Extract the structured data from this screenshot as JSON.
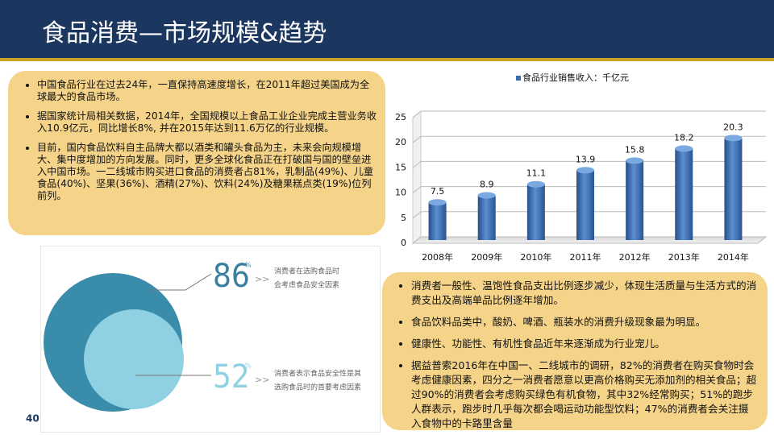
{
  "header": {
    "title": "食品消费—市场规模&趋势"
  },
  "left_box": {
    "bullets": [
      "中国食品行业在过去24年，一直保持高速度增长，在2011年超过美国成为全球最大的食品市场。",
      "据国家统计局相关数据，2014年，全国规模以上食品工业企业完成主营业务收入10.9亿元，同比增长8%, 并在2015年达到11.6万亿的行业规模。",
      "目前，国内食品饮料自主品牌大都以酒类和罐头食品为主，未来会向规模增大、集中度增加的方向发展。同时，更多全球化食品正在打破国与国的壁垒进入中国市场。一二线城市购买进口食品的消费者占81%，乳制品(49%)、儿童食品(40%)、坚果(36%)、酒精(27%)、饮料(24%)及糖果糕点类(19%)位列前列。"
    ]
  },
  "chart_data": {
    "type": "bar",
    "categories": [
      "2008年",
      "2009年",
      "2010年",
      "2011年",
      "2012年",
      "2013年",
      "2014年"
    ],
    "series": [
      {
        "name": "食品行业销售收入：千亿元",
        "color": "#3a6db0",
        "values": [
          7.5,
          8.9,
          11.1,
          13.9,
          15.8,
          18.2,
          20.3
        ]
      }
    ],
    "ylim": [
      0,
      25
    ],
    "yticks": [
      0,
      5,
      10,
      15,
      20,
      25
    ],
    "grid": true,
    "legend": "top"
  },
  "infographic": {
    "stats": [
      {
        "number": "86",
        "unit": "%",
        "arrow": ">>",
        "text": [
          "消费者在选购食品时",
          "会考虑食品安全因素"
        ]
      },
      {
        "number": "52",
        "unit": "%",
        "arrow": ">>",
        "text": [
          "消费者表示食品安全性是其",
          "选购食品时的首要考虑因素"
        ]
      }
    ]
  },
  "right_box": {
    "bullets": [
      "消费者一般性、温饱性食品支出比例逐步减少，体现生活质量与生活方式的消费支出及高端单品比例逐年增加。",
      "食品饮料品类中，酸奶、啤酒、瓶装水的消费升级现象最为明显。",
      "健康性、功能性、有机性食品近年来逐渐成为行业宠儿。",
      "据益普索2016年在中国一、二线城市的调研，82%的消费者在购买食物时会考虑健康因素，四分之一消费者愿意以更高价格购买无添加剂的相关食品；超过90%的消费者会考虑购买绿色有机食物，其中32%经常购买；51%的跑步人群表示，跑步时几乎每次都会喝运动功能型饮料；47%的消费者会关注摄入食物中的卡路里含量"
    ]
  },
  "page_number": "40"
}
